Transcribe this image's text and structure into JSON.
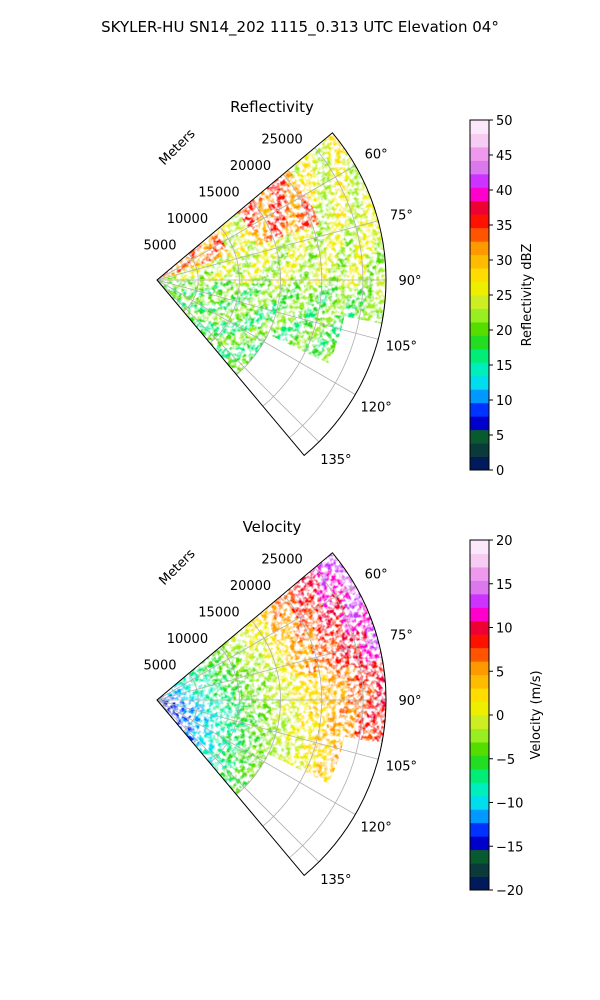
{
  "figure_title": "SKYLER-HU  SN14_202  1115_0.313 UTC Elevation 04°",
  "chart_data": [
    {
      "type": "heatmap",
      "subtype": "polar-sector (radar PPI)",
      "title": "Reflectivity",
      "theta_label": "Meters",
      "range_ticks": [
        5000,
        10000,
        15000,
        20000,
        25000
      ],
      "azimuth_ticks": [
        "60°",
        "75°",
        "90°",
        "105°",
        "120°",
        "135°"
      ],
      "azimuth_range_deg": [
        50,
        140
      ],
      "grid": true,
      "colorbar": {
        "label": "Reflectivity dBZ",
        "range": [
          0,
          50
        ],
        "ticks": [
          "0",
          "5",
          "10",
          "15",
          "20",
          "25",
          "30",
          "35",
          "40",
          "45",
          "50"
        ],
        "colors": [
          "#001a5c",
          "#0b3a3a",
          "#0a5a30",
          "#0000cc",
          "#0033ff",
          "#0099ff",
          "#00ddee",
          "#00eebb",
          "#00ee77",
          "#22dd22",
          "#55dd00",
          "#99ee22",
          "#ccee22",
          "#eeee00",
          "#ffdd00",
          "#ffbb00",
          "#ff9900",
          "#ff5500",
          "#ff1100",
          "#ee0033",
          "#ff00cc",
          "#cc33ff",
          "#dd77ee",
          "#ee99ee",
          "#f6ccf2",
          "#fbe8fa"
        ]
      }
    },
    {
      "type": "heatmap",
      "subtype": "polar-sector (radar PPI)",
      "title": "Velocity",
      "theta_label": "Meters",
      "range_ticks": [
        5000,
        10000,
        15000,
        20000,
        25000
      ],
      "azimuth_ticks": [
        "60°",
        "75°",
        "90°",
        "105°",
        "120°",
        "135°"
      ],
      "azimuth_range_deg": [
        50,
        140
      ],
      "grid": true,
      "colorbar": {
        "label": "Velocity (m/s)",
        "range": [
          -20,
          20
        ],
        "ticks": [
          "−20",
          "−15",
          "−10",
          "−5",
          "0",
          "5",
          "10",
          "15",
          "20"
        ],
        "colors": [
          "#001a5c",
          "#0b3a3a",
          "#0a5a30",
          "#0000cc",
          "#0033ff",
          "#0099ff",
          "#00ddee",
          "#00eebb",
          "#00ee77",
          "#22dd22",
          "#55dd00",
          "#99ee22",
          "#ccee22",
          "#eeee00",
          "#ffdd00",
          "#ffbb00",
          "#ff9900",
          "#ff5500",
          "#ff1100",
          "#ee0033",
          "#ff00cc",
          "#cc33ff",
          "#dd77ee",
          "#ee99ee",
          "#f6ccf2",
          "#fbe8fa"
        ]
      }
    }
  ]
}
